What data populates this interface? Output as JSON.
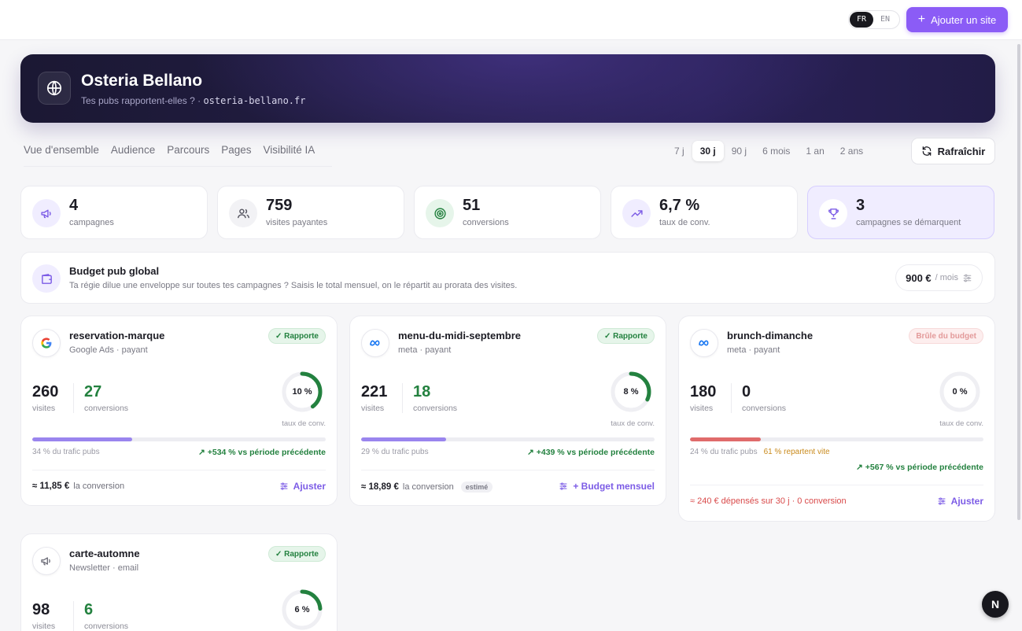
{
  "header": {
    "lang_fr": "FR",
    "lang_en": "EN",
    "add_site_label": "Ajouter un site"
  },
  "hero": {
    "title": "Osteria Bellano",
    "subtitle": "Tes pubs rapportent-elles ? ·",
    "domain": "osteria-bellano.fr"
  },
  "nav": {
    "tabs": [
      "Vue d'ensemble",
      "Audience",
      "Parcours",
      "Pages",
      "Visibilité IA"
    ]
  },
  "periods": {
    "options": [
      "7 j",
      "30 j",
      "90 j",
      "6 mois",
      "1 an",
      "2 ans"
    ],
    "selected": "30 j"
  },
  "refresh_label": "Rafraîchir",
  "stats": [
    {
      "value": "4",
      "label": "campagnes",
      "icon": "megaphone-icon"
    },
    {
      "value": "759",
      "label": "visites payantes",
      "icon": "users-icon"
    },
    {
      "value": "51",
      "label": "conversions",
      "icon": "target-icon"
    },
    {
      "value": "6,7 %",
      "label": "taux de conv.",
      "icon": "trend-up-icon"
    },
    {
      "value": "3",
      "label": "campagnes se démarquent",
      "icon": "trophy-icon"
    }
  ],
  "budget": {
    "title": "Budget pub global",
    "description": "Ta régie dilue une enveloppe sur toutes tes campagnes ? Saisis le total mensuel, on le répartit au prorata des visites.",
    "amount": "900 €",
    "unit": "/ mois"
  },
  "campaigns": [
    {
      "name": "reservation-marque",
      "source": "Google Ads · payant",
      "badge": "✓ Rapporte",
      "visits": "260",
      "visits_label": "visites",
      "conversions": "27",
      "conversions_label": "conversions",
      "rate": "10 %",
      "rate_fraction": 0.1,
      "rate_label": "taux de conv.",
      "share_text": "34 % du trafic pubs",
      "share_fraction": 0.34,
      "trend": "+534 % vs période précédente",
      "cost_value": "≈ 11,85 €",
      "cost_label": "la conversion",
      "action": "Ajuster"
    },
    {
      "name": "menu-du-midi-septembre",
      "source": "meta · payant",
      "badge": "✓ Rapporte",
      "visits": "221",
      "visits_label": "visites",
      "conversions": "18",
      "conversions_label": "conversions",
      "rate": "8 %",
      "rate_fraction": 0.08,
      "rate_label": "taux de conv.",
      "share_text": "29 % du trafic pubs",
      "share_fraction": 0.29,
      "trend": "+439 % vs période précédente",
      "cost_value": "≈ 18,89 €",
      "cost_label": "la conversion",
      "cost_tag": "estimé",
      "action": "+ Budget mensuel"
    },
    {
      "name": "brunch-dimanche",
      "source": "meta · payant",
      "badge": "Brûle du budget",
      "visits": "180",
      "visits_label": "visites",
      "conversions": "0",
      "conversions_label": "conversions",
      "rate": "0 %",
      "rate_fraction": 0,
      "rate_label": "taux de conv.",
      "share_text": "24 % du trafic pubs",
      "share_fraction": 0.24,
      "share_warning": "61 % repartent vite",
      "trend": "+567 % vs période précédente",
      "cost_text": "≈ 240 € dépensés sur 30 j · 0 conversion",
      "action": "Ajuster"
    },
    {
      "name": "carte-automne",
      "source": "Newsletter · email",
      "badge": "✓ Rapporte",
      "visits": "98",
      "visits_label": "visites",
      "conversions": "6",
      "conversions_label": "conversions",
      "rate": "6 %",
      "rate_fraction": 0.06
    }
  ],
  "colors": {
    "accent": "#8b5cf6",
    "success": "#23813f",
    "danger": "#d94a4a",
    "bar_purple": "#9a85ee",
    "bar_red": "#e06b6b"
  },
  "floating_badge": "N"
}
